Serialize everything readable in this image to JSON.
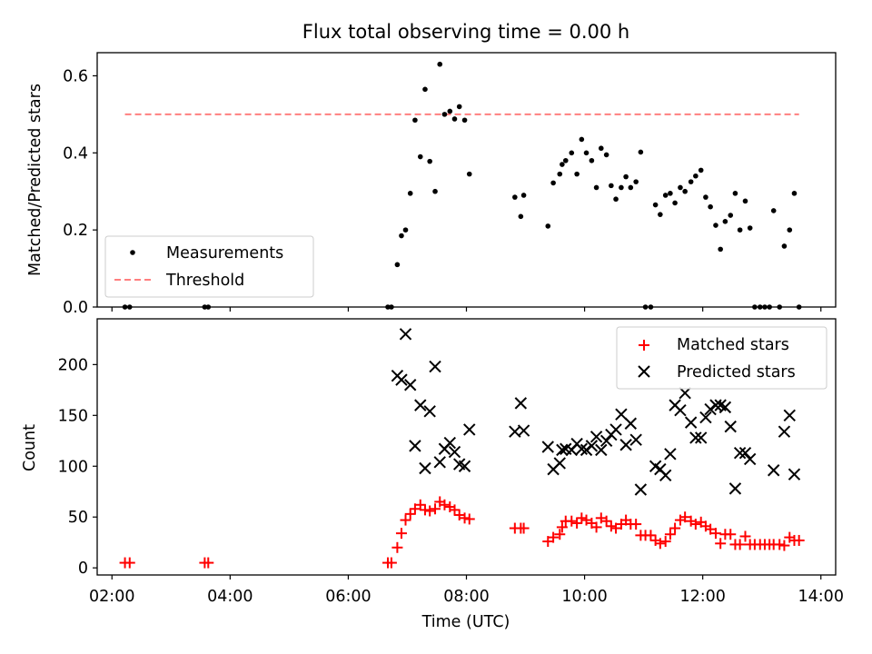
{
  "chart_data": [
    {
      "type": "scatter",
      "title": "Flux total observing time = 0.00 h",
      "ylabel": "Matched/Predicted stars",
      "xlabel": "",
      "x_unit": "hours UTC",
      "xlim": [
        1.75,
        14.25
      ],
      "ylim": [
        0,
        0.66
      ],
      "yticks": [
        0.0,
        0.2,
        0.4,
        0.6
      ],
      "ytick_labels": [
        "0.0",
        "0.2",
        "0.4",
        "0.6"
      ],
      "xticks": [
        2,
        4,
        6,
        8,
        10,
        12,
        14
      ],
      "legend": {
        "position": "lower-left",
        "entries": [
          "Measurements",
          "Threshold"
        ]
      },
      "series": [
        {
          "name": "Measurements",
          "color": "#000000",
          "marker": "dot",
          "points": [
            [
              2.22,
              0.0
            ],
            [
              2.3,
              0.0
            ],
            [
              3.57,
              0.0
            ],
            [
              3.63,
              0.0
            ],
            [
              6.67,
              0.0
            ],
            [
              6.73,
              0.0
            ],
            [
              6.83,
              0.11
            ],
            [
              6.9,
              0.185
            ],
            [
              6.97,
              0.2
            ],
            [
              7.05,
              0.295
            ],
            [
              7.13,
              0.485
            ],
            [
              7.22,
              0.39
            ],
            [
              7.3,
              0.565
            ],
            [
              7.38,
              0.378
            ],
            [
              7.47,
              0.3
            ],
            [
              7.55,
              0.63
            ],
            [
              7.63,
              0.5
            ],
            [
              7.72,
              0.508
            ],
            [
              7.8,
              0.488
            ],
            [
              7.88,
              0.52
            ],
            [
              7.97,
              0.485
            ],
            [
              8.05,
              0.345
            ],
            [
              8.82,
              0.285
            ],
            [
              8.92,
              0.235
            ],
            [
              8.97,
              0.29
            ],
            [
              9.38,
              0.21
            ],
            [
              9.47,
              0.322
            ],
            [
              9.58,
              0.345
            ],
            [
              9.62,
              0.37
            ],
            [
              9.68,
              0.38
            ],
            [
              9.78,
              0.4
            ],
            [
              9.87,
              0.345
            ],
            [
              9.95,
              0.435
            ],
            [
              10.03,
              0.4
            ],
            [
              10.12,
              0.38
            ],
            [
              10.2,
              0.31
            ],
            [
              10.28,
              0.412
            ],
            [
              10.37,
              0.395
            ],
            [
              10.45,
              0.315
            ],
            [
              10.53,
              0.28
            ],
            [
              10.62,
              0.31
            ],
            [
              10.7,
              0.338
            ],
            [
              10.78,
              0.31
            ],
            [
              10.87,
              0.325
            ],
            [
              10.95,
              0.402
            ],
            [
              11.03,
              0.0
            ],
            [
              11.12,
              0.0
            ],
            [
              11.2,
              0.265
            ],
            [
              11.28,
              0.24
            ],
            [
              11.37,
              0.29
            ],
            [
              11.45,
              0.295
            ],
            [
              11.53,
              0.27
            ],
            [
              11.62,
              0.31
            ],
            [
              11.7,
              0.3
            ],
            [
              11.8,
              0.325
            ],
            [
              11.88,
              0.34
            ],
            [
              11.97,
              0.355
            ],
            [
              12.05,
              0.285
            ],
            [
              12.13,
              0.26
            ],
            [
              12.22,
              0.212
            ],
            [
              12.3,
              0.15
            ],
            [
              12.38,
              0.222
            ],
            [
              12.47,
              0.238
            ],
            [
              12.55,
              0.295
            ],
            [
              12.63,
              0.2
            ],
            [
              12.72,
              0.275
            ],
            [
              12.8,
              0.205
            ],
            [
              12.88,
              0.0
            ],
            [
              12.97,
              0.0
            ],
            [
              13.05,
              0.0
            ],
            [
              13.13,
              0.0
            ],
            [
              13.2,
              0.25
            ],
            [
              13.3,
              0.0
            ],
            [
              13.38,
              0.158
            ],
            [
              13.47,
              0.2
            ],
            [
              13.55,
              0.295
            ],
            [
              13.63,
              0.0
            ]
          ]
        },
        {
          "name": "Threshold",
          "color": "#ff7f7f",
          "style": "dashed",
          "x": [
            2.22,
            13.63
          ],
          "y": [
            0.5,
            0.5
          ]
        }
      ]
    },
    {
      "type": "scatter",
      "title": "",
      "ylabel": "Count",
      "xlabel": "Time (UTC)",
      "x_unit": "hours UTC",
      "xlim": [
        1.75,
        14.25
      ],
      "ylim": [
        -7,
        245
      ],
      "yticks": [
        0,
        50,
        100,
        150,
        200
      ],
      "ytick_labels": [
        "0",
        "50",
        "100",
        "150",
        "200"
      ],
      "xticks": [
        2,
        4,
        6,
        8,
        10,
        12,
        14
      ],
      "xtick_labels": [
        "02:00",
        "04:00",
        "06:00",
        "08:00",
        "10:00",
        "12:00",
        "14:00"
      ],
      "legend": {
        "position": "top-right",
        "entries": [
          "Matched stars",
          "Predicted stars"
        ]
      },
      "series": [
        {
          "name": "Matched stars",
          "color": "#ff0000",
          "marker": "plus",
          "points": [
            [
              2.22,
              5
            ],
            [
              2.3,
              5
            ],
            [
              3.57,
              5
            ],
            [
              3.63,
              5
            ],
            [
              6.67,
              5
            ],
            [
              6.73,
              5
            ],
            [
              6.83,
              20
            ],
            [
              6.9,
              34
            ],
            [
              6.97,
              47
            ],
            [
              7.05,
              53
            ],
            [
              7.13,
              58
            ],
            [
              7.22,
              62
            ],
            [
              7.3,
              57
            ],
            [
              7.38,
              56
            ],
            [
              7.47,
              58
            ],
            [
              7.55,
              65
            ],
            [
              7.63,
              62
            ],
            [
              7.72,
              60
            ],
            [
              7.8,
              57
            ],
            [
              7.88,
              52
            ],
            [
              7.97,
              49
            ],
            [
              8.05,
              48
            ],
            [
              8.82,
              39
            ],
            [
              8.92,
              39
            ],
            [
              8.97,
              39
            ],
            [
              9.38,
              26
            ],
            [
              9.47,
              30
            ],
            [
              9.58,
              33
            ],
            [
              9.62,
              40
            ],
            [
              9.68,
              46
            ],
            [
              9.78,
              46
            ],
            [
              9.87,
              44
            ],
            [
              9.95,
              49
            ],
            [
              10.03,
              47
            ],
            [
              10.12,
              44
            ],
            [
              10.2,
              40
            ],
            [
              10.28,
              49
            ],
            [
              10.37,
              46
            ],
            [
              10.45,
              41
            ],
            [
              10.53,
              39
            ],
            [
              10.62,
              43
            ],
            [
              10.7,
              47
            ],
            [
              10.78,
              43
            ],
            [
              10.87,
              43
            ],
            [
              10.95,
              32
            ],
            [
              11.03,
              32
            ],
            [
              11.12,
              32
            ],
            [
              11.2,
              27
            ],
            [
              11.28,
              24
            ],
            [
              11.37,
              26
            ],
            [
              11.45,
              33
            ],
            [
              11.53,
              39
            ],
            [
              11.62,
              47
            ],
            [
              11.7,
              50
            ],
            [
              11.8,
              46
            ],
            [
              11.88,
              43
            ],
            [
              11.97,
              45
            ],
            [
              12.05,
              41
            ],
            [
              12.13,
              38
            ],
            [
              12.22,
              34
            ],
            [
              12.3,
              24
            ],
            [
              12.38,
              33
            ],
            [
              12.47,
              33
            ],
            [
              12.55,
              23
            ],
            [
              12.63,
              23
            ],
            [
              12.72,
              31
            ],
            [
              12.8,
              23
            ],
            [
              12.88,
              23
            ],
            [
              12.97,
              23
            ],
            [
              13.05,
              23
            ],
            [
              13.13,
              23
            ],
            [
              13.2,
              23
            ],
            [
              13.3,
              23
            ],
            [
              13.38,
              22
            ],
            [
              13.47,
              30
            ],
            [
              13.55,
              27
            ],
            [
              13.63,
              27
            ]
          ]
        },
        {
          "name": "Predicted stars",
          "color": "#000000",
          "marker": "x",
          "points": [
            [
              6.83,
              189
            ],
            [
              6.9,
              185
            ],
            [
              6.97,
              230
            ],
            [
              7.05,
              180
            ],
            [
              7.13,
              120
            ],
            [
              7.22,
              160
            ],
            [
              7.3,
              98
            ],
            [
              7.38,
              154
            ],
            [
              7.47,
              198
            ],
            [
              7.55,
              104
            ],
            [
              7.63,
              117
            ],
            [
              7.72,
              123
            ],
            [
              7.8,
              114
            ],
            [
              7.88,
              102
            ],
            [
              7.97,
              100
            ],
            [
              8.05,
              136
            ],
            [
              8.82,
              134
            ],
            [
              8.92,
              162
            ],
            [
              8.97,
              135
            ],
            [
              9.38,
              119
            ],
            [
              9.47,
              97
            ],
            [
              9.58,
              103
            ],
            [
              9.62,
              116
            ],
            [
              9.68,
              117
            ],
            [
              9.78,
              116
            ],
            [
              9.87,
              122
            ],
            [
              9.95,
              117
            ],
            [
              10.03,
              116
            ],
            [
              10.12,
              120
            ],
            [
              10.2,
              129
            ],
            [
              10.28,
              116
            ],
            [
              10.37,
              125
            ],
            [
              10.45,
              131
            ],
            [
              10.53,
              136
            ],
            [
              10.62,
              151
            ],
            [
              10.7,
              121
            ],
            [
              10.78,
              142
            ],
            [
              10.87,
              126
            ],
            [
              10.95,
              77
            ],
            [
              11.2,
              100
            ],
            [
              11.28,
              97
            ],
            [
              11.37,
              91
            ],
            [
              11.45,
              112
            ],
            [
              11.53,
              160
            ],
            [
              11.62,
              155
            ],
            [
              11.7,
              172
            ],
            [
              11.8,
              143
            ],
            [
              11.88,
              128
            ],
            [
              11.97,
              128
            ],
            [
              12.05,
              148
            ],
            [
              12.13,
              156
            ],
            [
              12.22,
              160
            ],
            [
              12.3,
              160
            ],
            [
              12.38,
              158
            ],
            [
              12.47,
              139
            ],
            [
              12.55,
              78
            ],
            [
              12.63,
              113
            ],
            [
              12.72,
              113
            ],
            [
              12.8,
              107
            ],
            [
              13.2,
              96
            ],
            [
              13.38,
              134
            ],
            [
              13.47,
              150
            ],
            [
              13.55,
              92
            ]
          ]
        }
      ]
    }
  ]
}
